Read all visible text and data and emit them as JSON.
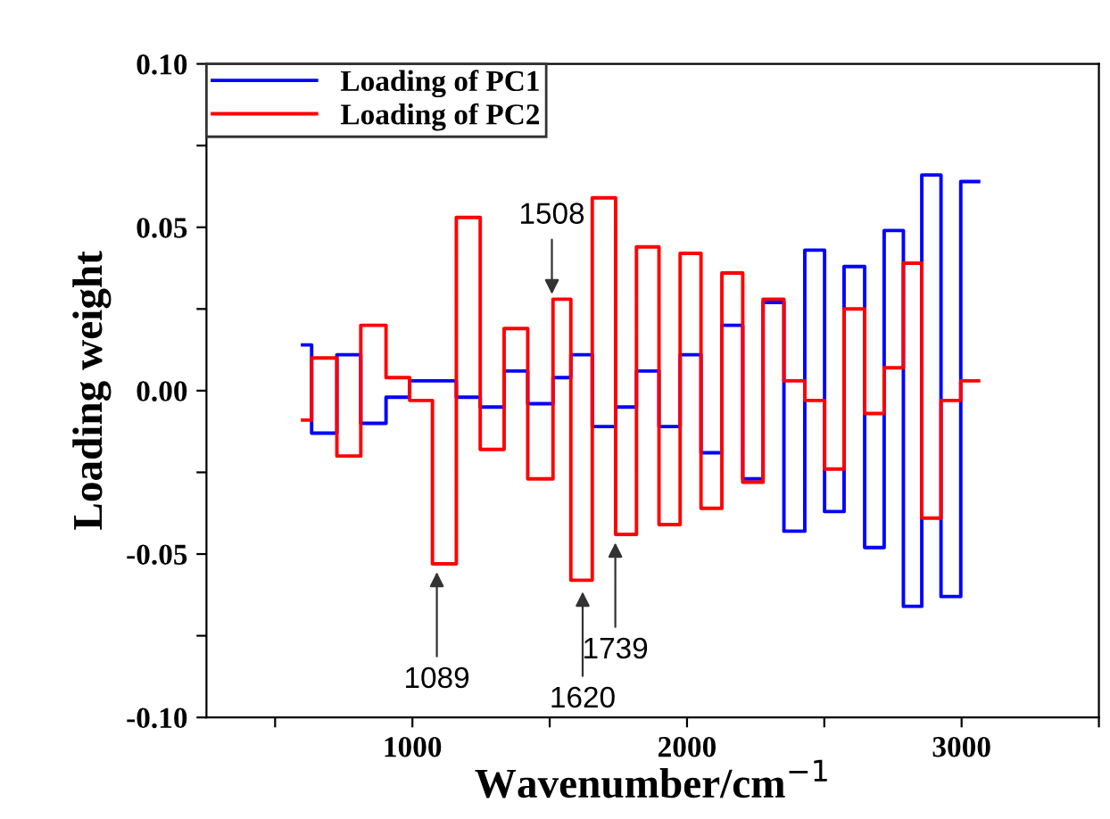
{
  "chart_data": {
    "type": "step",
    "xlabel": "Wavenumber/cm$^{−1}$",
    "ylabel": "Loading weight",
    "x": [
      600,
      633,
      725,
      812,
      904,
      990,
      1073,
      1160,
      1247,
      1334,
      1420,
      1512,
      1577,
      1655,
      1740,
      1816,
      1898,
      1975,
      2051,
      2127,
      2203,
      2277,
      2353,
      2429,
      2501,
      2572,
      2647,
      2718,
      2788,
      2855,
      2925,
      2997,
      3062
    ],
    "series": [
      {
        "name": "Loading of PC1",
        "color": "#0000ff",
        "values": [
          0.014,
          -0.013,
          0.011,
          -0.01,
          -0.002,
          0.003,
          0.003,
          -0.002,
          -0.005,
          0.006,
          -0.004,
          0.004,
          0.011,
          -0.011,
          -0.005,
          0.006,
          -0.011,
          0.011,
          -0.019,
          0.02,
          -0.027,
          0.027,
          -0.043,
          0.043,
          -0.037,
          0.038,
          -0.048,
          0.049,
          -0.066,
          0.066,
          -0.063,
          0.064,
          0.064
        ]
      },
      {
        "name": "Loading of PC2",
        "color": "#ff0000",
        "values": [
          -0.009,
          0.01,
          -0.02,
          0.02,
          0.004,
          -0.003,
          -0.053,
          0.053,
          -0.018,
          0.019,
          -0.027,
          0.028,
          -0.058,
          0.059,
          -0.044,
          0.044,
          -0.041,
          0.042,
          -0.036,
          0.036,
          -0.028,
          0.028,
          0.003,
          -0.003,
          -0.024,
          0.025,
          -0.007,
          0.007,
          0.039,
          -0.039,
          -0.003,
          0.003,
          0.003
        ]
      }
    ],
    "xlim": [
      250,
      3500
    ],
    "xticks": [
      {
        "value": 500,
        "label": null
      },
      1000,
      {
        "value": 1500,
        "label": null
      },
      2000,
      {
        "value": 2500,
        "label": null
      },
      3000,
      {
        "value": 3500,
        "label": null
      }
    ],
    "ylim": [
      -0.1,
      0.1
    ],
    "yticks": [
      {
        "value": -0.1,
        "label": "-0.10"
      },
      {
        "value": -0.075,
        "label": null
      },
      {
        "value": -0.05,
        "label": "-0.05"
      },
      {
        "value": -0.025,
        "label": null
      },
      {
        "value": 0,
        "label": "0.00"
      },
      {
        "value": 0.025,
        "label": null
      },
      {
        "value": 0.05,
        "label": "0.05"
      },
      {
        "value": 0.075,
        "label": null
      },
      {
        "value": 0.1,
        "label": "0.10"
      }
    ],
    "annotations": [
      {
        "text": "1089",
        "x": 1089,
        "y": -0.054
      },
      {
        "text": "1508",
        "x": 1508,
        "y": 0.028
      },
      {
        "text": "1620",
        "x": 1620,
        "y": -0.06
      },
      {
        "text": "1739",
        "x": 1739,
        "y": -0.045
      }
    ],
    "legend": "top left",
    "grid": false,
    "line_style": "solid",
    "marker": "none"
  }
}
